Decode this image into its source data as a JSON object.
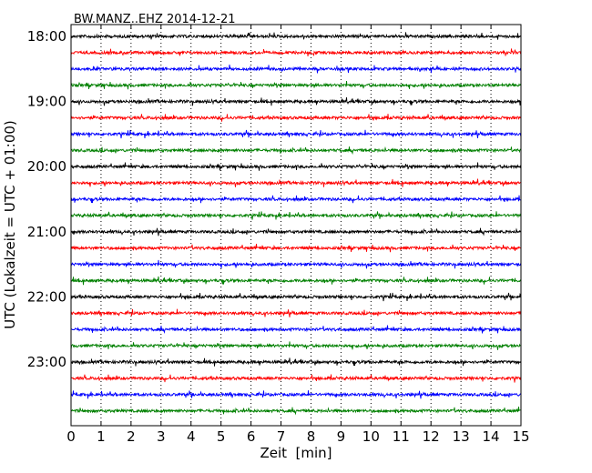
{
  "chart_data": {
    "type": "line",
    "title": "BW.MANZ..EHZ 2014-12-21",
    "xlabel": "Zeit  [min]",
    "ylabel": "UTC (Lokalzeit = UTC + 01:00)",
    "xlim": [
      0,
      15
    ],
    "x_ticks": [
      "0",
      "1",
      "2",
      "3",
      "4",
      "5",
      "6",
      "7",
      "8",
      "9",
      "10",
      "11",
      "12",
      "13",
      "14",
      "15"
    ],
    "y_ticks": [
      "18:00",
      "19:00",
      "20:00",
      "21:00",
      "22:00",
      "23:00"
    ],
    "grid": "vertical dotted",
    "trace_interval_min": 15,
    "trace_colors": [
      "#000000",
      "#ff0000",
      "#0000ff",
      "#008000"
    ],
    "traces": [
      {
        "start": "18:00",
        "color": "#000000"
      },
      {
        "start": "18:15",
        "color": "#ff0000"
      },
      {
        "start": "18:30",
        "color": "#0000ff"
      },
      {
        "start": "18:45",
        "color": "#008000"
      },
      {
        "start": "19:00",
        "color": "#000000"
      },
      {
        "start": "19:15",
        "color": "#ff0000"
      },
      {
        "start": "19:30",
        "color": "#0000ff"
      },
      {
        "start": "19:45",
        "color": "#008000"
      },
      {
        "start": "20:00",
        "color": "#000000"
      },
      {
        "start": "20:15",
        "color": "#ff0000"
      },
      {
        "start": "20:30",
        "color": "#0000ff"
      },
      {
        "start": "20:45",
        "color": "#008000"
      },
      {
        "start": "21:00",
        "color": "#000000"
      },
      {
        "start": "21:15",
        "color": "#ff0000"
      },
      {
        "start": "21:30",
        "color": "#0000ff"
      },
      {
        "start": "21:45",
        "color": "#008000"
      },
      {
        "start": "22:00",
        "color": "#000000"
      },
      {
        "start": "22:15",
        "color": "#ff0000"
      },
      {
        "start": "22:30",
        "color": "#0000ff"
      },
      {
        "start": "22:45",
        "color": "#008000"
      },
      {
        "start": "23:00",
        "color": "#000000"
      },
      {
        "start": "23:15",
        "color": "#ff0000"
      },
      {
        "start": "23:30",
        "color": "#0000ff"
      },
      {
        "start": "23:45",
        "color": "#008000"
      }
    ]
  }
}
